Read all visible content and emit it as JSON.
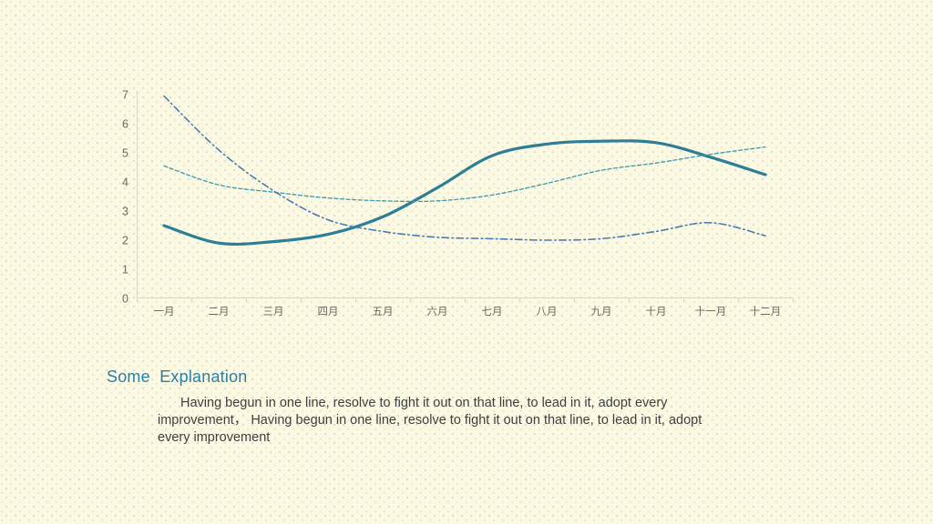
{
  "slide": {
    "background_color": "#fbf9e2"
  },
  "chart_data": {
    "type": "line",
    "title": "",
    "xlabel": "",
    "ylabel": "",
    "categories": [
      "一月",
      "二月",
      "三月",
      "四月",
      "五月",
      "六月",
      "七月",
      "八月",
      "九月",
      "十月",
      "十一月",
      "十二月"
    ],
    "series": [
      {
        "style": "solid",
        "color": "#2d7e96",
        "stroke_width": 3.2,
        "values": [
          2.5,
          1.9,
          1.95,
          2.2,
          2.8,
          3.8,
          4.9,
          5.3,
          5.4,
          5.35,
          4.85,
          4.25
        ]
      },
      {
        "style": "dashed",
        "color": "#3e99ae",
        "stroke_width": 1.3,
        "values": [
          4.55,
          3.9,
          3.65,
          3.45,
          3.35,
          3.35,
          3.55,
          3.95,
          4.4,
          4.65,
          4.95,
          5.2
        ]
      },
      {
        "style": "dash-dot",
        "color": "#4b7cb0",
        "stroke_width": 1.6,
        "values": [
          6.95,
          5.1,
          3.7,
          2.7,
          2.3,
          2.1,
          2.05,
          2.0,
          2.05,
          2.3,
          2.6,
          2.15
        ]
      }
    ],
    "ylim": [
      0,
      7
    ],
    "yticks": [
      0,
      1,
      2,
      3,
      4,
      5,
      6,
      7
    ],
    "grid": false,
    "legend": "none",
    "smooth": true,
    "axis_color": "#dbd7c2",
    "tick_label_color": "#6a6a62"
  },
  "text": {
    "heading": "Some  Explanation",
    "heading_color": "#2a7fa4",
    "body_color": "#3e3e3e",
    "body": "Having begun in one line, resolve to fight it out on that line, to lead in it, adopt every improvement， Having begun in one line, resolve to fight it out on that line, to lead in it, adopt every improvement",
    "body_lines": [
      "Having begun in one line, resolve to fight it out on that line, to lead in it, adopt every",
      "improvement， Having begun in one line, resolve to fight it out on that line, to lead in it, adopt",
      "every improvement"
    ]
  }
}
